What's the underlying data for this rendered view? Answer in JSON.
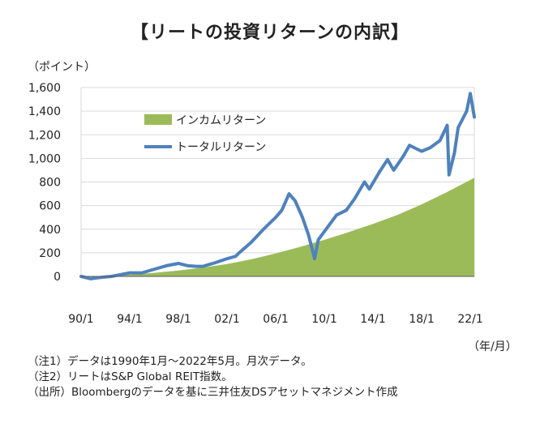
{
  "title": "【リートの投資リターンの内訳】",
  "y_unit_label": "（ポイント）",
  "x_unit_label": "（年/月）",
  "notes": [
    "（注1）データは1990年1月～2022年5月。月次データ。",
    "（注2）リートはS&P Global REIT指数。",
    "（出所）Bloombergのデータを基に三井住友DSアセットマネジメント作成"
  ],
  "chart_data": {
    "type": "area",
    "title": "【リートの投資リターンの内訳】",
    "xlabel": "（年/月）",
    "ylabel": "（ポイント）",
    "ylim": [
      0,
      1600
    ],
    "xlim": [
      1990.0,
      2022.33
    ],
    "yticks": [
      0,
      200,
      400,
      600,
      800,
      1000,
      1200,
      1400,
      1600
    ],
    "ytick_labels": [
      "0",
      "200",
      "400",
      "600",
      "800",
      "1,000",
      "1,200",
      "1,400",
      "1,600"
    ],
    "xtick_labels": [
      "90/1",
      "94/1",
      "98/1",
      "02/1",
      "06/1",
      "10/1",
      "14/1",
      "18/1",
      "22/1"
    ],
    "xticks": [
      1990,
      1994,
      1998,
      2002,
      2006,
      2010,
      2014,
      2018,
      2022
    ],
    "legend_location": "upper-left",
    "colors": {
      "income": "#9bbb59",
      "total": "#4f81bd"
    },
    "series": [
      {
        "name": "インカムリターン",
        "type": "area",
        "x": [
          1990,
          1992,
          1994,
          1996,
          1998,
          2000,
          2002,
          2004,
          2006,
          2008,
          2010,
          2012,
          2014,
          2016,
          2018,
          2020,
          2022.33
        ],
        "values": [
          0,
          5,
          15,
          30,
          50,
          75,
          105,
          145,
          195,
          250,
          310,
          375,
          445,
          520,
          610,
          710,
          835
        ]
      },
      {
        "name": "トータルリターン",
        "type": "line",
        "x": [
          1990,
          1990.8,
          1991.5,
          1992.5,
          1993.5,
          1994,
          1995,
          1996,
          1997,
          1998,
          1998.8,
          1999.5,
          2000,
          2001,
          2002,
          2002.7,
          2003,
          2004,
          2005,
          2006,
          2006.5,
          2007.1,
          2007.6,
          2008.2,
          2008.7,
          2009.2,
          2009.5,
          2010,
          2011,
          2011.8,
          2012.5,
          2013.3,
          2013.7,
          2014.5,
          2015.2,
          2015.7,
          2016.5,
          2017,
          2018,
          2018.7,
          2019.5,
          2020.1,
          2020.25,
          2020.7,
          2021,
          2021.7,
          2022,
          2022.33
        ],
        "values": [
          0,
          -20,
          -10,
          0,
          20,
          30,
          30,
          60,
          90,
          110,
          90,
          85,
          85,
          115,
          150,
          170,
          200,
          290,
          400,
          500,
          560,
          700,
          640,
          500,
          350,
          150,
          310,
          380,
          520,
          560,
          660,
          800,
          740,
          880,
          990,
          900,
          1020,
          1110,
          1060,
          1090,
          1150,
          1280,
          860,
          1050,
          1260,
          1400,
          1550,
          1350
        ]
      }
    ]
  }
}
